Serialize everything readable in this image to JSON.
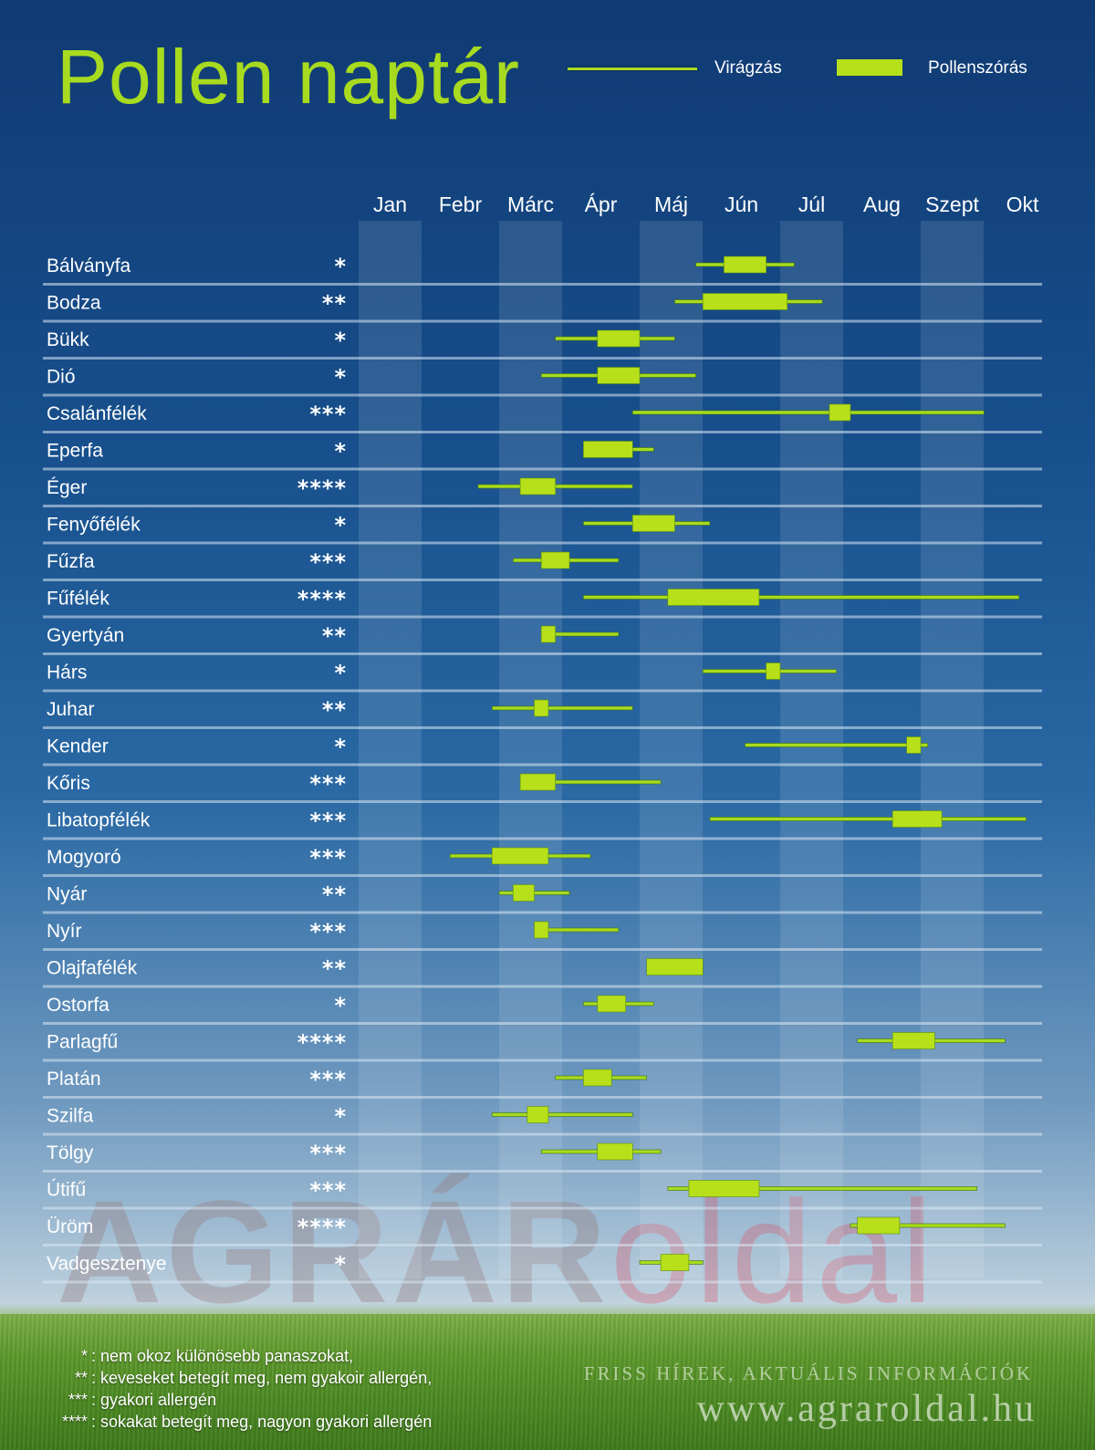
{
  "title": "Pollen naptár",
  "legend": {
    "flowering": "Virágzás",
    "pollen": "Pollenszórás"
  },
  "colors": {
    "accent": "#a8db1f",
    "pollen_bar": "#b7e01a",
    "band": "#ffffff"
  },
  "watermark": {
    "part_a": "AGRÁR",
    "part_b": "oldal"
  },
  "chart_data": {
    "type": "gantt",
    "title": "Pollen naptár",
    "categories": [
      "Jan",
      "Febr",
      "Márc",
      "Ápr",
      "Máj",
      "Jún",
      "Júl",
      "Aug",
      "Szept",
      "Okt"
    ],
    "x_unit": "month (1 = start of January)",
    "xlim": [
      1,
      11
    ],
    "series": [
      {
        "name": "Virágzás",
        "key": "flowering"
      },
      {
        "name": "Pollenszórás",
        "key": "pollen"
      }
    ],
    "rows": [
      {
        "plant": "Bálványfa",
        "rating": "*",
        "flowering": [
          5.8,
          7.2
        ],
        "pollen": [
          6.2,
          6.8
        ]
      },
      {
        "plant": "Bodza",
        "rating": "**",
        "flowering": [
          5.5,
          7.6
        ],
        "pollen": [
          5.9,
          7.1
        ]
      },
      {
        "plant": "Bükk",
        "rating": "*",
        "flowering": [
          3.8,
          5.5
        ],
        "pollen": [
          4.4,
          5.0
        ]
      },
      {
        "plant": "Dió",
        "rating": "*",
        "flowering": [
          3.6,
          5.8
        ],
        "pollen": [
          4.4,
          5.0
        ]
      },
      {
        "plant": "Csalánfélék",
        "rating": "***",
        "flowering": [
          4.9,
          9.9
        ],
        "pollen": [
          7.7,
          8.0
        ]
      },
      {
        "plant": "Eperfa",
        "rating": "*",
        "flowering": [
          4.2,
          5.2
        ],
        "pollen": [
          4.2,
          4.9
        ]
      },
      {
        "plant": "Éger",
        "rating": "****",
        "flowering": [
          2.7,
          4.9
        ],
        "pollen": [
          3.3,
          3.8
        ]
      },
      {
        "plant": "Fenyőfélék",
        "rating": "*",
        "flowering": [
          4.2,
          6.0
        ],
        "pollen": [
          4.9,
          5.5
        ]
      },
      {
        "plant": "Fűzfa",
        "rating": "***",
        "flowering": [
          3.2,
          4.7
        ],
        "pollen": [
          3.6,
          4.0
        ]
      },
      {
        "plant": "Fűfélék",
        "rating": "****",
        "flowering": [
          4.2,
          10.4
        ],
        "pollen": [
          5.4,
          6.7
        ]
      },
      {
        "plant": "Gyertyán",
        "rating": "**",
        "flowering": [
          3.6,
          4.7
        ],
        "pollen": [
          3.6,
          3.8
        ]
      },
      {
        "plant": "Hárs",
        "rating": "*",
        "flowering": [
          5.9,
          7.8
        ],
        "pollen": [
          6.8,
          7.0
        ]
      },
      {
        "plant": "Juhar",
        "rating": "**",
        "flowering": [
          2.9,
          4.9
        ],
        "pollen": [
          3.5,
          3.7
        ]
      },
      {
        "plant": "Kender",
        "rating": "*",
        "flowering": [
          6.5,
          9.1
        ],
        "pollen": [
          8.8,
          9.0
        ]
      },
      {
        "plant": "Kőris",
        "rating": "***",
        "flowering": [
          3.3,
          5.3
        ],
        "pollen": [
          3.3,
          3.8
        ]
      },
      {
        "plant": "Libatopfélék",
        "rating": "***",
        "flowering": [
          6.0,
          10.5
        ],
        "pollen": [
          8.6,
          9.3
        ]
      },
      {
        "plant": "Mogyoró",
        "rating": "***",
        "flowering": [
          2.3,
          4.3
        ],
        "pollen": [
          2.9,
          3.7
        ]
      },
      {
        "plant": "Nyár",
        "rating": "**",
        "flowering": [
          3.0,
          4.0
        ],
        "pollen": [
          3.2,
          3.5
        ]
      },
      {
        "plant": "Nyír",
        "rating": "***",
        "flowering": [
          3.5,
          4.7
        ],
        "pollen": [
          3.5,
          3.7
        ]
      },
      {
        "plant": "Olajfafélék",
        "rating": "**",
        "flowering": [
          5.1,
          5.9
        ],
        "pollen": [
          5.1,
          5.9
        ]
      },
      {
        "plant": "Ostorfa",
        "rating": "*",
        "flowering": [
          4.2,
          5.2
        ],
        "pollen": [
          4.4,
          4.8
        ]
      },
      {
        "plant": "Parlagfű",
        "rating": "****",
        "flowering": [
          8.1,
          10.2
        ],
        "pollen": [
          8.6,
          9.2
        ]
      },
      {
        "plant": "Platán",
        "rating": "***",
        "flowering": [
          3.8,
          5.1
        ],
        "pollen": [
          4.2,
          4.6
        ]
      },
      {
        "plant": "Szilfa",
        "rating": "*",
        "flowering": [
          2.9,
          4.9
        ],
        "pollen": [
          3.4,
          3.7
        ]
      },
      {
        "plant": "Tölgy",
        "rating": "***",
        "flowering": [
          3.6,
          5.3
        ],
        "pollen": [
          4.4,
          4.9
        ]
      },
      {
        "plant": "Útifű",
        "rating": "***",
        "flowering": [
          5.4,
          9.8
        ],
        "pollen": [
          5.7,
          6.7
        ]
      },
      {
        "plant": "Üröm",
        "rating": "****",
        "flowering": [
          8.0,
          10.2
        ],
        "pollen": [
          8.1,
          8.7
        ]
      },
      {
        "plant": "Vadgesztenye",
        "rating": "*",
        "flowering": [
          5.0,
          5.9
        ],
        "pollen": [
          5.3,
          5.7
        ]
      }
    ]
  },
  "footnotes": [
    {
      "key": "*",
      "text": ": nem okoz különösebb panaszokat,"
    },
    {
      "key": "**",
      "text": ": keveseket betegít meg, nem gyakoir allergén,"
    },
    {
      "key": "***",
      "text": ": gyakori allergén"
    },
    {
      "key": "****",
      "text": ": sokakat betegít meg, nagyon gyakori allergén"
    }
  ],
  "footer": {
    "slogan": "FRISS HÍREK, AKTUÁLIS INFORMÁCIÓK",
    "url": "www.agraroldal.hu"
  }
}
